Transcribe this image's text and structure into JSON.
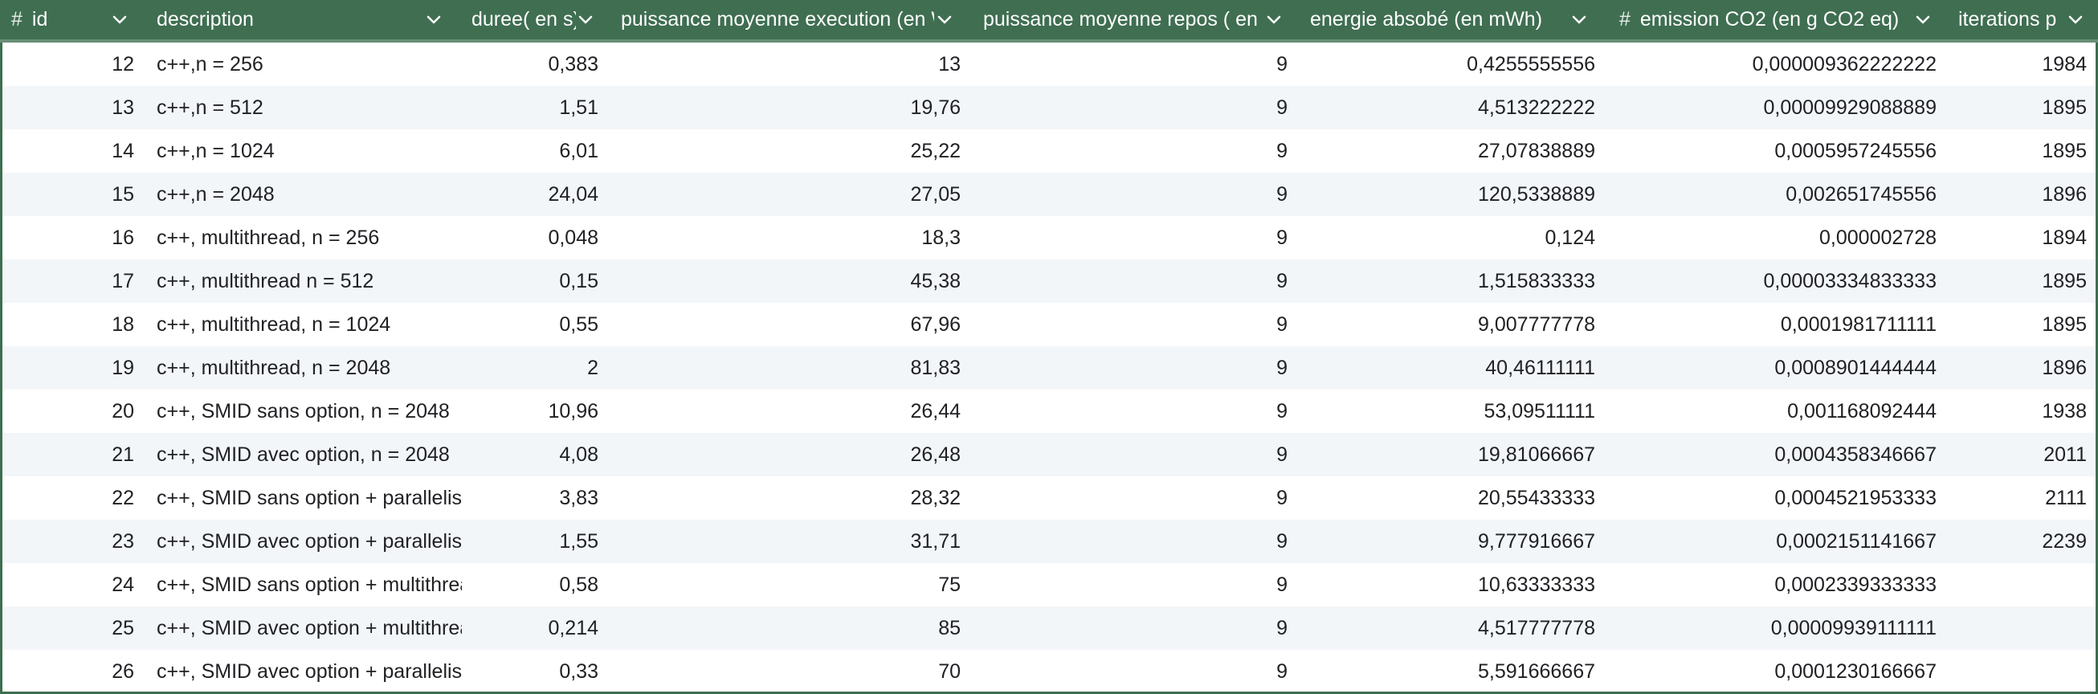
{
  "table": {
    "columns": [
      {
        "key": "id",
        "label": "id",
        "numeric": true
      },
      {
        "key": "description",
        "label": "description",
        "numeric": false
      },
      {
        "key": "duree",
        "label": "duree( en s)",
        "numeric": false
      },
      {
        "key": "p_exec",
        "label": "puissance moyenne execution (en W",
        "numeric": false
      },
      {
        "key": "p_repos",
        "label": "puissance moyenne repos ( en W",
        "numeric": false
      },
      {
        "key": "energie",
        "label": "energie absobé (en mWh)",
        "numeric": false
      },
      {
        "key": "co2",
        "label": "emission CO2 (en g CO2 eq)",
        "numeric": true
      },
      {
        "key": "iter",
        "label": "iterations p",
        "numeric": false
      }
    ],
    "rows": [
      [
        "12",
        "c++,n = 256",
        "0,383",
        "13",
        "9",
        "0,4255555556",
        "0,000009362222222",
        "1984"
      ],
      [
        "13",
        "c++,n = 512",
        "1,51",
        "19,76",
        "9",
        "4,513222222",
        "0,00009929088889",
        "1895"
      ],
      [
        "14",
        "c++,n = 1024",
        "6,01",
        "25,22",
        "9",
        "27,07838889",
        "0,0005957245556",
        "1895"
      ],
      [
        "15",
        "c++,n = 2048",
        "24,04",
        "27,05",
        "9",
        "120,5338889",
        "0,002651745556",
        "1896"
      ],
      [
        "16",
        "c++, multithread, n = 256",
        "0,048",
        "18,3",
        "9",
        "0,124",
        "0,000002728",
        "1894"
      ],
      [
        "17",
        "c++, multithread n = 512",
        "0,15",
        "45,38",
        "9",
        "1,515833333",
        "0,00003334833333",
        "1895"
      ],
      [
        "18",
        "c++, multithread, n = 1024",
        "0,55",
        "67,96",
        "9",
        "9,007777778",
        "0,0001981711111",
        "1895"
      ],
      [
        "19",
        "c++, multithread, n = 2048",
        "2",
        "81,83",
        "9",
        "40,46111111",
        "0,0008901444444",
        "1896"
      ],
      [
        "20",
        "c++, SMID sans option, n = 2048",
        "10,96",
        "26,44",
        "9",
        "53,09511111",
        "0,001168092444",
        "1938"
      ],
      [
        "21",
        "c++, SMID avec option, n = 2048",
        "4,08",
        "26,48",
        "9",
        "19,81066667",
        "0,0004358346667",
        "2011"
      ],
      [
        "22",
        "c++, SMID sans option + parallelism",
        "3,83",
        "28,32",
        "9",
        "20,55433333",
        "0,0004521953333",
        "2111"
      ],
      [
        "23",
        "c++, SMID avec option + parallelism",
        "1,55",
        "31,71",
        "9",
        "9,777916667",
        "0,0002151141667",
        "2239"
      ],
      [
        "24",
        "c++, SMID sans option + multithread",
        "0,58",
        "75",
        "9",
        "10,63333333",
        "0,0002339333333",
        ""
      ],
      [
        "25",
        "c++, SMID avec option + multithread",
        "0,214",
        "85",
        "9",
        "4,517777778",
        "0,00009939111111",
        ""
      ],
      [
        "26",
        "c++, SMID avec option + parallelism",
        "0,33",
        "70",
        "9",
        "5,591666667",
        "0,0001230166667",
        ""
      ]
    ]
  },
  "icons": {
    "numeric_type": "hash-icon",
    "sort_menu": "chevron-down-icon"
  },
  "colors": {
    "header_bg": "#3f6e51",
    "header_text": "#ffffff",
    "alt_row_bg": "#f3f6f9"
  }
}
